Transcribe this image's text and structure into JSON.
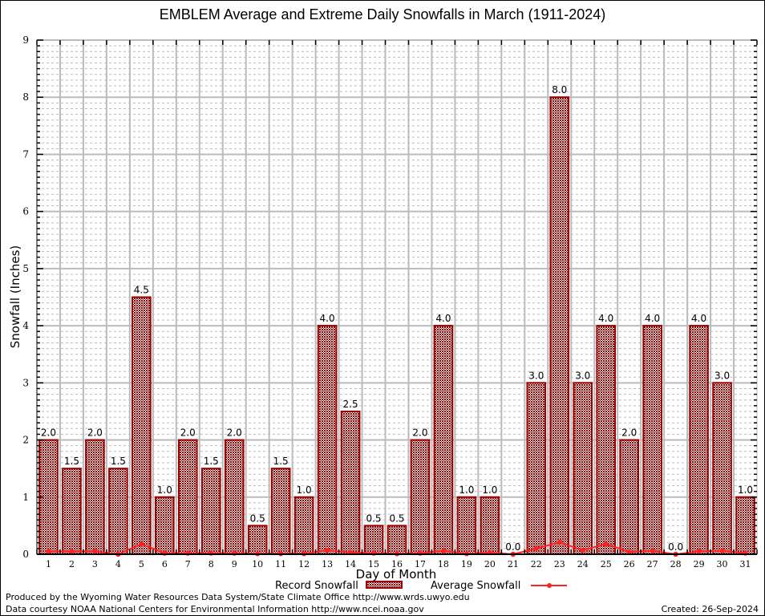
{
  "chart_data": {
    "type": "bar",
    "title": "EMBLEM Average and Extreme Daily Snowfalls in March (1911-2024)",
    "xlabel": "Day of Month",
    "ylabel": "Snowfall (Inches)",
    "ylim": [
      0,
      9
    ],
    "yticks": [
      "0",
      "1",
      "2",
      "3",
      "4",
      "5",
      "6",
      "7",
      "8",
      "9"
    ],
    "grid": true,
    "categories": [
      "1",
      "2",
      "3",
      "4",
      "5",
      "6",
      "7",
      "8",
      "9",
      "10",
      "11",
      "12",
      "13",
      "14",
      "15",
      "16",
      "17",
      "18",
      "19",
      "20",
      "21",
      "22",
      "23",
      "24",
      "25",
      "26",
      "27",
      "28",
      "29",
      "30",
      "31"
    ],
    "series": [
      {
        "name": "Record Snowfall",
        "type": "bar",
        "color": "#990000",
        "values": [
          2.0,
          1.5,
          2.0,
          1.5,
          4.5,
          1.0,
          2.0,
          1.5,
          2.0,
          0.5,
          1.5,
          1.0,
          4.0,
          2.5,
          0.5,
          0.5,
          2.0,
          4.0,
          1.0,
          1.0,
          0.0,
          3.0,
          8.0,
          3.0,
          4.0,
          2.0,
          4.0,
          0.0,
          4.0,
          3.0,
          1.0
        ],
        "labels": [
          "2.0",
          "1.5",
          "2.0",
          "1.5",
          "4.5",
          "1.0",
          "2.0",
          "1.5",
          "2.0",
          "0.5",
          "1.5",
          "1.0",
          "4.0",
          "2.5",
          "0.5",
          "0.5",
          "2.0",
          "4.0",
          "1.0",
          "1.0",
          "0.0",
          "3.0",
          "8.0",
          "3.0",
          "4.0",
          "2.0",
          "4.0",
          "0.0",
          "4.0",
          "3.0",
          "1.0"
        ]
      },
      {
        "name": "Average Snowfall",
        "type": "line",
        "color": "#ff2020",
        "values": [
          0.05,
          0.05,
          0.05,
          0.0,
          0.18,
          0.02,
          0.02,
          0.02,
          0.02,
          0.01,
          0.01,
          0.01,
          0.07,
          0.03,
          0.02,
          0.01,
          0.02,
          0.06,
          0.01,
          0.03,
          0.0,
          0.1,
          0.21,
          0.07,
          0.18,
          0.04,
          0.06,
          0.0,
          0.05,
          0.06,
          0.02
        ]
      }
    ],
    "legend": "bottom"
  },
  "footer": {
    "line1": "Produced by the Wyoming Water Resources Data System/State Climate Office http://www.wrds.uwyo.edu",
    "line2": "Data courtesy NOAA National Centers for Environmental Information http://www.ncei.noaa.gov",
    "created": "Created: 26-Sep-2024"
  }
}
